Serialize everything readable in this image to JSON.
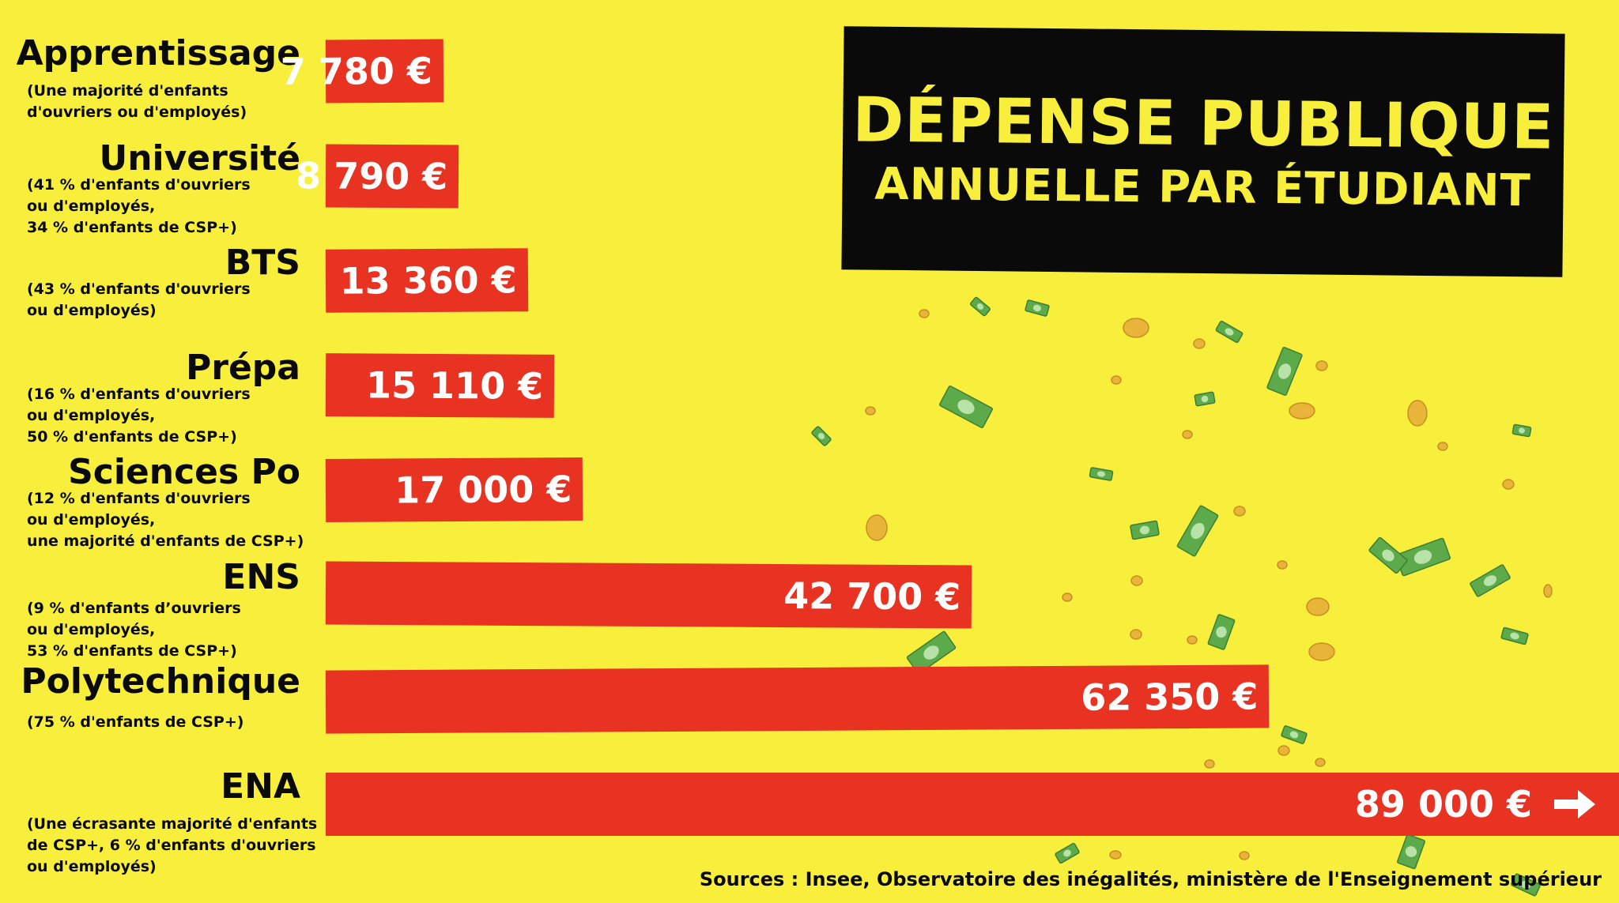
{
  "title": {
    "line1": "DÉPENSE PUBLIQUE",
    "line2": "ANNUELLE PAR ÉTUDIANT"
  },
  "source": "Sources : Insee, Observatoire des inégalités, ministère de l'Enseignement supérieur",
  "colors": {
    "background": "#f8ee3c",
    "bar": "#e83222",
    "title_box": "#0a0a0a",
    "title_text": "#f8ee3c",
    "value_text": "#ffffff",
    "label_text": "#0a0a0a",
    "banknote": "#5daa4a",
    "coin": "#e9b43a"
  },
  "chart_data": {
    "type": "bar",
    "orientation": "horizontal",
    "title": "DÉPENSE PUBLIQUE ANNUELLE PAR ÉTUDIANT",
    "unit": "€",
    "categories": [
      "Apprentissage",
      "Université",
      "BTS",
      "Prépa",
      "Sciences Po",
      "ENS",
      "Polytechnique",
      "ENA"
    ],
    "values": [
      7780,
      8790,
      13360,
      15110,
      17000,
      42700,
      62350,
      89000
    ],
    "value_labels": [
      "7 780 €",
      "8 790 €",
      "13 360 €",
      "15 110 €",
      "17 000 €",
      "42 700 €",
      "62 350 €",
      "89 000 €"
    ],
    "notes": [
      "(Une majorité d'enfants\nd'ouvriers ou d'employés)",
      "(41 % d'enfants d'ouvriers\nou d'employés,\n34 % d'enfants de CSP+)",
      "(43 % d'enfants d'ouvriers\nou d'employés)",
      "(16 % d'enfants d'ouvriers\nou d'employés,\n50 % d'enfants de CSP+)",
      "(12 % d'enfants d'ouvriers\nou d'employés,\nune majorité d'enfants de CSP+)",
      "(9 % d'enfants d’ouvriers\nou d'employés,\n53 % d'enfants de CSP+)",
      "(75 % d'enfants de CSP+)",
      "(Une écrasante majorité d'enfants\nde CSP+, 6 % d'enfants d'ouvriers\nou d'employés)"
    ],
    "last_bar_extends_off_scale": true,
    "decoration": {
      "banknote_icon": "banknote-icon",
      "coin_icon": "coin-icon",
      "arrow_icon": "arrow-right-icon"
    }
  }
}
